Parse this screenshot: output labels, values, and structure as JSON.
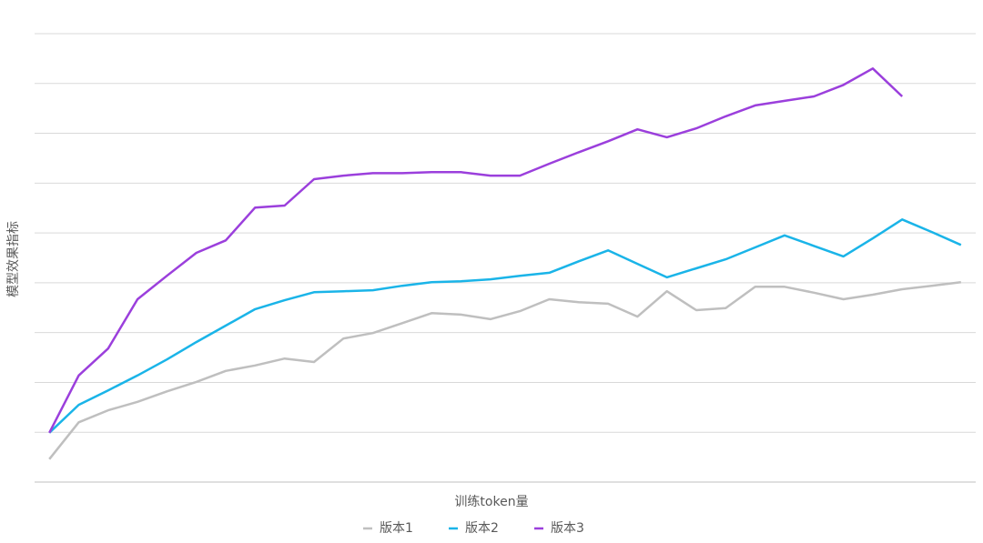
{
  "chart_data": {
    "type": "line",
    "x_label": "训练token量",
    "y_label": "模型效果指标",
    "categories": [
      null,
      null,
      null,
      null,
      null,
      null,
      null,
      null,
      null,
      null,
      null,
      null,
      null,
      null,
      null,
      null,
      null,
      null,
      null,
      null,
      null,
      null,
      null,
      null,
      null,
      null,
      null,
      null,
      null,
      null,
      null,
      null
    ],
    "ylim": [
      0,
      9
    ],
    "yticks": [
      0,
      1,
      2,
      3,
      4,
      5,
      6,
      7,
      8,
      9
    ],
    "grid": true,
    "legend": "bottom",
    "series": [
      {
        "name": "版本1",
        "color": "#bfbfbf",
        "values": [
          0.46,
          1.2,
          1.44,
          1.61,
          1.82,
          2.01,
          2.23,
          2.34,
          2.48,
          2.41,
          2.88,
          2.99,
          3.19,
          3.39,
          3.36,
          3.27,
          3.43,
          3.67,
          3.61,
          3.58,
          3.32,
          3.83,
          3.45,
          3.49,
          3.92,
          3.92,
          3.8,
          3.67,
          3.76,
          3.87,
          3.94,
          4.01
        ]
      },
      {
        "name": "版本2",
        "color": "#1ab4e8",
        "values": [
          0.99,
          1.55,
          1.84,
          2.14,
          2.46,
          2.81,
          3.14,
          3.47,
          3.65,
          3.81,
          3.83,
          3.85,
          3.94,
          4.01,
          4.03,
          4.07,
          4.14,
          4.2,
          4.43,
          4.65,
          4.38,
          4.11,
          4.29,
          4.47,
          4.71,
          4.95,
          4.74,
          4.53,
          4.89,
          5.27,
          5.02,
          4.76
        ]
      },
      {
        "name": "版本3",
        "color": "#9b3fdc",
        "values": [
          0.99,
          2.14,
          2.68,
          3.67,
          4.14,
          4.6,
          4.85,
          5.51,
          5.55,
          6.08,
          6.15,
          6.2,
          6.2,
          6.22,
          6.22,
          6.15,
          6.15,
          6.39,
          6.62,
          6.84,
          7.08,
          6.92,
          7.1,
          7.34,
          7.56,
          7.65,
          7.74,
          7.97,
          8.3,
          7.74,
          null,
          null
        ]
      }
    ]
  }
}
